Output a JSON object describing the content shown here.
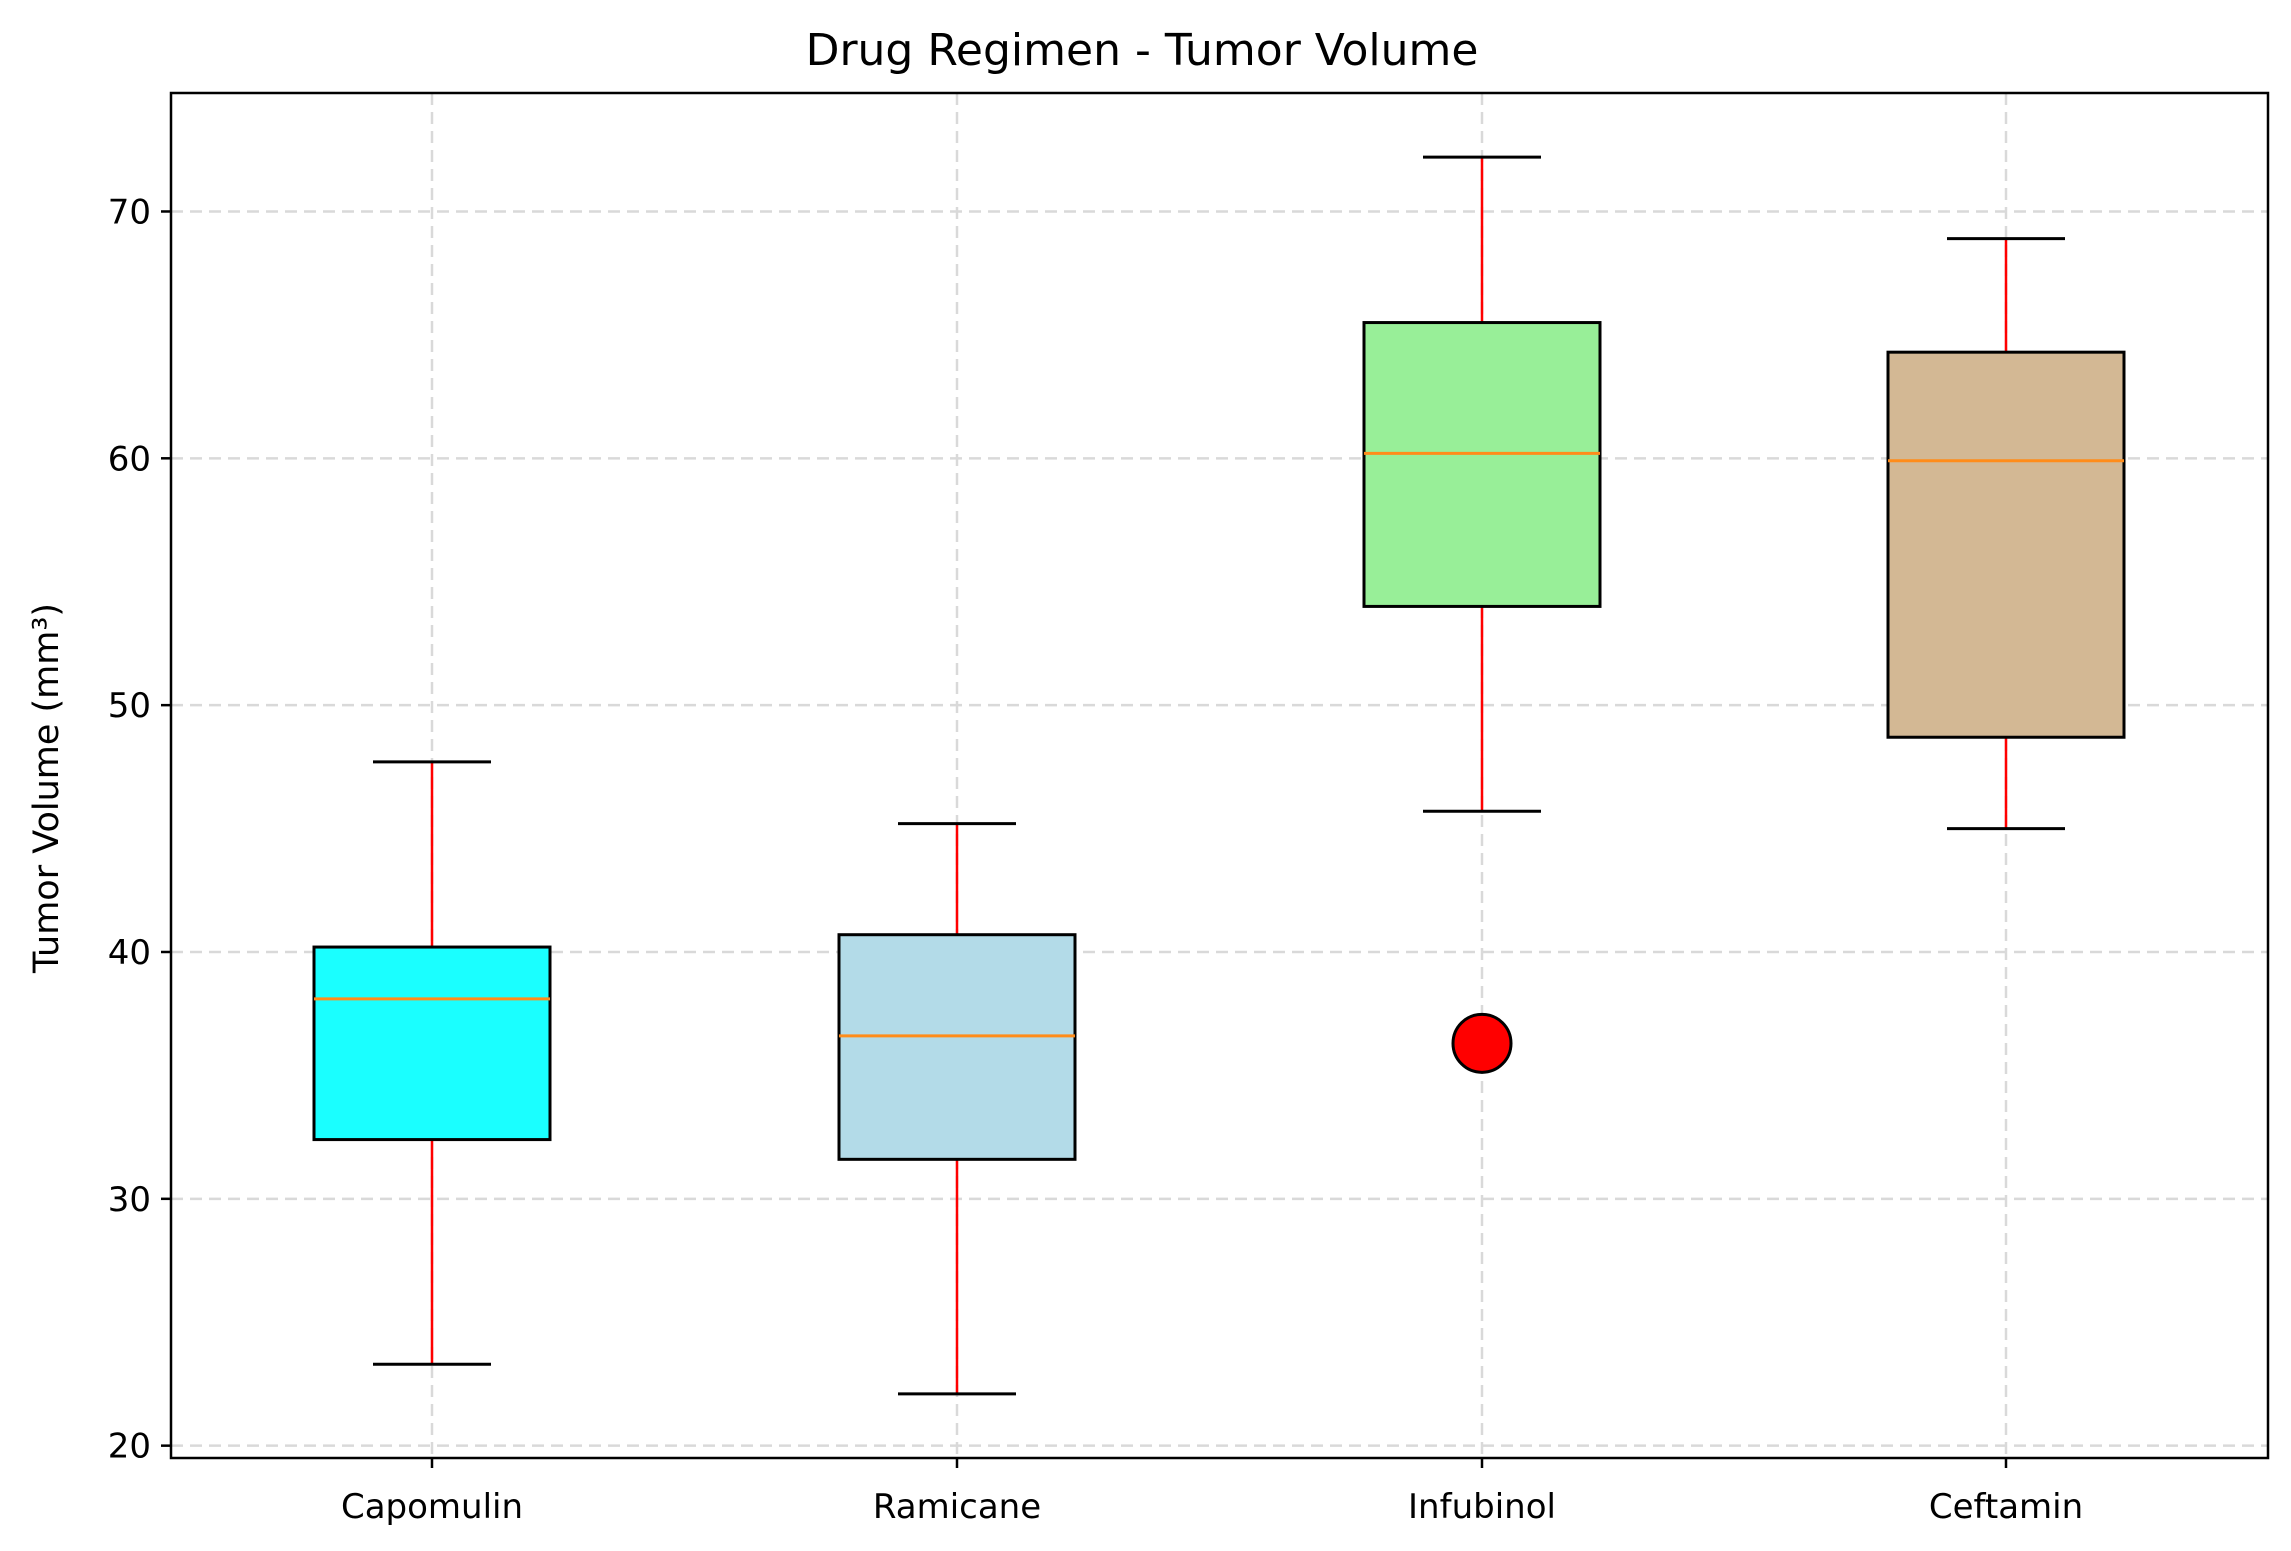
{
  "chart_data": {
    "type": "box",
    "title": "Drug Regimen - Tumor Volume",
    "xlabel": "",
    "ylabel": "Tumor Volume (mm³)",
    "ylim": [
      19.5,
      74.8
    ],
    "yticks": [
      20,
      30,
      40,
      50,
      60,
      70
    ],
    "grid": true,
    "categories": [
      "Capomulin",
      "Ramicane",
      "Infubinol",
      "Ceftamin"
    ],
    "boxes": [
      {
        "name": "Capomulin",
        "whisker_low": 23.3,
        "q1": 32.4,
        "median": 38.1,
        "q3": 40.2,
        "whisker_high": 47.7,
        "fliers": [],
        "color": "#1affff"
      },
      {
        "name": "Ramicane",
        "whisker_low": 22.1,
        "q1": 31.6,
        "median": 36.6,
        "q3": 40.7,
        "whisker_high": 45.2,
        "fliers": [],
        "color": "#b3dbe8"
      },
      {
        "name": "Infubinol",
        "whisker_low": 45.7,
        "q1": 54.0,
        "median": 60.2,
        "q3": 65.5,
        "whisker_high": 72.2,
        "fliers": [
          36.3
        ],
        "color": "#98ef98"
      },
      {
        "name": "Ceftamin",
        "whisker_low": 45.0,
        "q1": 48.7,
        "median": 59.9,
        "q3": 64.3,
        "whisker_high": 68.9,
        "fliers": [],
        "color": "#d3b894"
      }
    ],
    "colors": {
      "whisker": "#ff0000",
      "median": "#ff8c1a",
      "cap": "#000000",
      "box_edge": "#000000",
      "flier": "#ff0000",
      "grid": "#d9d9d9"
    }
  }
}
